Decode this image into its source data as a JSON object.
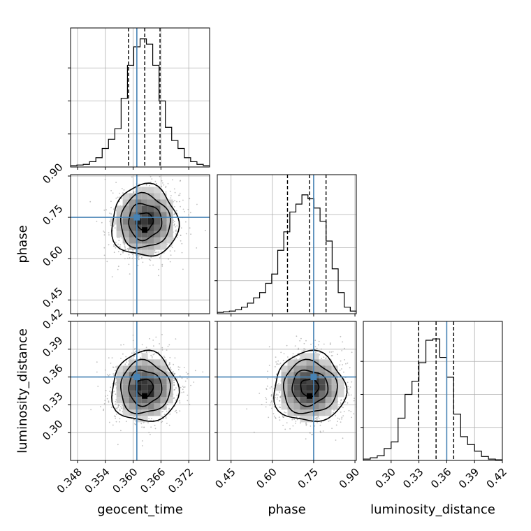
{
  "chart_data": {
    "type": "corner",
    "parameters": [
      "geocent_time",
      "phase",
      "luminosity_distance"
    ],
    "truths": {
      "geocent_time": 0.3608,
      "phase": 0.75,
      "luminosity_distance": 0.36
    },
    "quantiles": {
      "geocent_time": [
        0.359,
        0.3625,
        0.3658
      ],
      "phase": [
        0.655,
        0.735,
        0.795
      ],
      "luminosity_distance": [
        0.3295,
        0.3485,
        0.3675
      ]
    },
    "ranges": {
      "geocent_time": [
        0.3465,
        0.3765
      ],
      "phase": [
        0.4,
        0.905
      ],
      "luminosity_distance": [
        0.27,
        0.42
      ]
    },
    "ticks": {
      "geocent_time": [
        "0.348",
        "0.354",
        "0.360",
        "0.366",
        "0.372"
      ],
      "phase": [
        "0.45",
        "0.60",
        "0.75",
        "0.90"
      ],
      "luminosity_distance": [
        "0.30",
        "0.33",
        "0.36",
        "0.39",
        "0.42"
      ]
    },
    "tick_values": {
      "geocent_time": [
        0.348,
        0.354,
        0.36,
        0.366,
        0.372
      ],
      "phase": [
        0.45,
        0.6,
        0.75,
        0.9
      ],
      "luminosity_distance": [
        0.3,
        0.33,
        0.36,
        0.39,
        0.42
      ]
    },
    "histograms": {
      "geocent_time": [
        0.01,
        0.015,
        0.02,
        0.04,
        0.07,
        0.14,
        0.21,
        0.29,
        0.52,
        0.77,
        0.91,
        0.97,
        0.93,
        0.77,
        0.5,
        0.3,
        0.2,
        0.14,
        0.07,
        0.04,
        0.02,
        0.01
      ],
      "phase": [
        0.01,
        0.015,
        0.02,
        0.03,
        0.05,
        0.08,
        0.12,
        0.16,
        0.23,
        0.3,
        0.48,
        0.62,
        0.77,
        0.83,
        0.9,
        0.87,
        0.8,
        0.7,
        0.55,
        0.34,
        0.16,
        0.05,
        0.02
      ],
      "luminosity_distance": [
        0.01,
        0.02,
        0.035,
        0.09,
        0.14,
        0.32,
        0.5,
        0.6,
        0.74,
        0.91,
        0.92,
        0.78,
        0.63,
        0.35,
        0.18,
        0.12,
        0.07,
        0.03,
        0.01,
        0.005
      ]
    },
    "posterior": {
      "geocent_time": {
        "mean": 0.3625,
        "sd": 0.0034
      },
      "phase": {
        "mean": 0.735,
        "sd": 0.062
      },
      "luminosity_distance": {
        "mean": 0.3485,
        "sd": 0.018
      }
    },
    "truth_color": "#4682b4",
    "grid": true
  }
}
